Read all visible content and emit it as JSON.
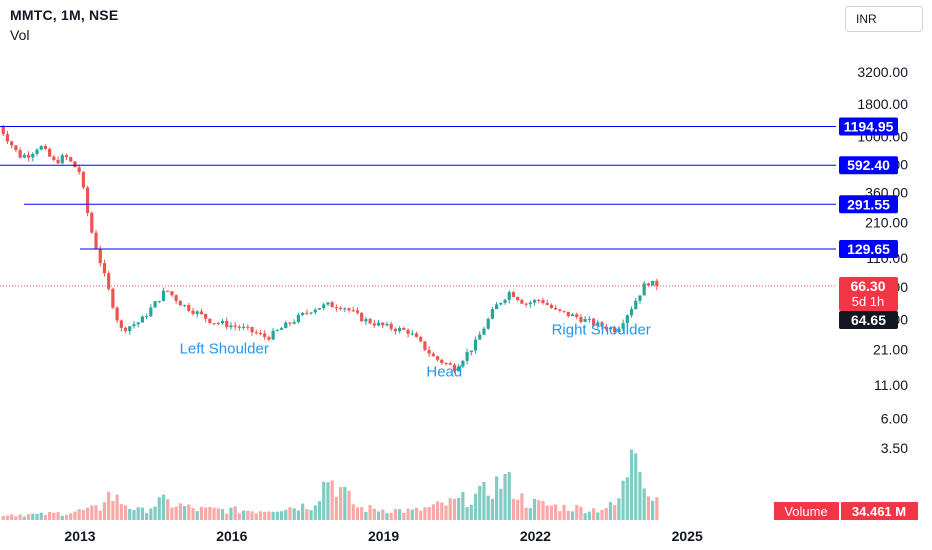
{
  "header": {
    "title": "MMTC, 1M, NSE",
    "volume_label": "Vol"
  },
  "currency_button": "INR",
  "chart_data": {
    "type": "candlestick",
    "symbol": "MMTC",
    "interval": "1M",
    "exchange": "NSE",
    "y_scale": "log",
    "y_ticks": [
      "3200.00",
      "1800.00",
      "1000.00",
      "600.00",
      "360.00",
      "210.00",
      "110.00",
      "65.00",
      "36.00",
      "21.00",
      "11.00",
      "6.00",
      "3.50"
    ],
    "x_ticks": [
      "2013",
      "2016",
      "2019",
      "2022",
      "2025"
    ],
    "horizontal_levels": [
      {
        "label": "1194.95",
        "value": 1194.95,
        "color": "#0000ff"
      },
      {
        "label": "592.40",
        "value": 592.4,
        "color": "#0000ff"
      },
      {
        "label": "291.55",
        "value": 291.55,
        "color": "#0000ff"
      },
      {
        "label": "129.65",
        "value": 129.65,
        "color": "#0000ff"
      }
    ],
    "last_price": {
      "label": "66.30",
      "value": 66.3,
      "countdown": "5d 1h",
      "color": "#f23645"
    },
    "crosshair_price": {
      "label": "64.65",
      "value": 64.65
    },
    "annotations": [
      {
        "text": "Left Shoulder",
        "date": 2015.85,
        "value": 19.5
      },
      {
        "text": "Head",
        "date": 2020.2,
        "value": 12.8
      },
      {
        "text": "Right Shoulder",
        "date": 2023.3,
        "value": 27.5
      }
    ],
    "volume_label": {
      "name": "Volume",
      "value": "34.461 M"
    },
    "colors": {
      "up": "#26a69a",
      "down": "#ef5350",
      "level": "#0000ff",
      "annotation": "#2196f3"
    },
    "series": [
      {
        "name": "MMTC",
        "anchors": [
          [
            2011.4,
            1200
          ],
          [
            2011.8,
            700
          ],
          [
            2012.0,
            720
          ],
          [
            2012.2,
            850
          ],
          [
            2012.5,
            620
          ],
          [
            2012.7,
            700
          ],
          [
            2013.0,
            520
          ],
          [
            2013.2,
            195
          ],
          [
            2013.5,
            75
          ],
          [
            2013.8,
            30
          ],
          [
            2014.2,
            35
          ],
          [
            2014.7,
            62
          ],
          [
            2015.0,
            48
          ],
          [
            2015.6,
            35
          ],
          [
            2016.2,
            31
          ],
          [
            2016.7,
            26
          ],
          [
            2017.1,
            33
          ],
          [
            2017.6,
            44
          ],
          [
            2017.9,
            47
          ],
          [
            2018.2,
            46
          ],
          [
            2018.6,
            36
          ],
          [
            2019.0,
            32
          ],
          [
            2019.5,
            29
          ],
          [
            2020.0,
            18
          ],
          [
            2020.4,
            15
          ],
          [
            2020.8,
            23
          ],
          [
            2021.2,
            45
          ],
          [
            2021.5,
            60
          ],
          [
            2021.8,
            48
          ],
          [
            2022.1,
            52
          ],
          [
            2022.4,
            42
          ],
          [
            2022.8,
            38
          ],
          [
            2023.2,
            33
          ],
          [
            2023.6,
            30
          ],
          [
            2023.9,
            45
          ],
          [
            2024.2,
            72
          ],
          [
            2024.4,
            66.3
          ]
        ]
      }
    ],
    "volume": [
      [
        2011.4,
        1.0
      ],
      [
        2012.2,
        0.9
      ],
      [
        2012.8,
        1.3
      ],
      [
        2013.4,
        2.0
      ],
      [
        2013.5,
        4.5
      ],
      [
        2014.2,
        1.4
      ],
      [
        2014.6,
        3.2
      ],
      [
        2015.3,
        1.8
      ],
      [
        2016.5,
        1.6
      ],
      [
        2017.6,
        2.6
      ],
      [
        2017.9,
        7.4
      ],
      [
        2018.5,
        2.0
      ],
      [
        2019.6,
        1.5
      ],
      [
        2020.3,
        2.8
      ],
      [
        2020.9,
        4.2
      ],
      [
        2021.4,
        6.9
      ],
      [
        2021.8,
        3.0
      ],
      [
        2022.5,
        2.2
      ],
      [
        2023.2,
        1.8
      ],
      [
        2023.6,
        2.5
      ],
      [
        2023.8,
        7.0
      ],
      [
        2023.95,
        18.0
      ],
      [
        2024.2,
        4.5
      ],
      [
        2024.4,
        3.6
      ]
    ]
  }
}
